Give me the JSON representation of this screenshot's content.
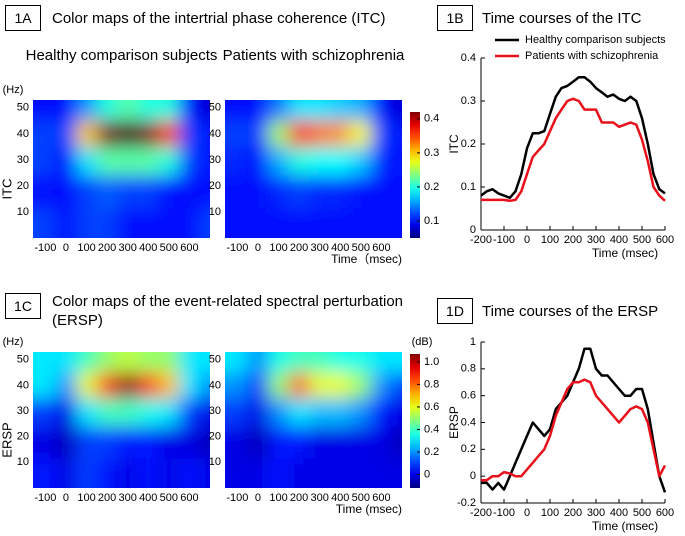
{
  "panels": [
    {
      "label": "1A",
      "title": "Color maps of the intertrial phase coherence (ITC)"
    },
    {
      "label": "1B",
      "title": "Time courses of the ITC"
    },
    {
      "label": "1C",
      "title": "Color maps of the event-related spectral perturbation (ERSP)"
    },
    {
      "label": "1D",
      "title": "Time courses of the ERSP"
    }
  ],
  "chart_data": [
    {
      "type": "heatmap",
      "title": "Healthy comparison subjects",
      "y_label": "ITC",
      "y_unit": "(Hz)",
      "x": [
        -100,
        0,
        100,
        200,
        300,
        400,
        500,
        600,
        700
      ],
      "y": [
        5,
        18,
        30,
        40,
        50
      ],
      "z": [
        [
          0.12,
          0.1,
          0.12,
          0.12,
          0.1,
          0.1,
          0.1,
          0.1,
          0.12
        ],
        [
          0.1,
          0.1,
          0.12,
          0.13,
          0.12,
          0.12,
          0.1,
          0.1,
          0.1
        ],
        [
          0.12,
          0.1,
          0.18,
          0.22,
          0.22,
          0.22,
          0.2,
          0.12,
          0.1
        ],
        [
          0.12,
          0.12,
          0.3,
          0.42,
          0.44,
          0.42,
          0.35,
          0.12,
          0.1
        ],
        [
          0.1,
          0.1,
          0.15,
          0.2,
          0.22,
          0.2,
          0.2,
          0.1,
          0.08
        ]
      ],
      "xlim": [
        -160,
        700
      ],
      "ylim": [
        0,
        53
      ],
      "zlim": [
        0.05,
        0.42
      ],
      "xticks": [
        -100,
        0,
        100,
        200,
        300,
        400,
        500,
        600
      ],
      "yticks": [
        10,
        20,
        30,
        40,
        50
      ]
    },
    {
      "type": "heatmap",
      "title": "Patients with schizophrenia",
      "x_label": "Time（msec)",
      "x": [
        -100,
        0,
        100,
        200,
        300,
        400,
        500,
        600,
        700
      ],
      "y": [
        5,
        18,
        30,
        40,
        50
      ],
      "z": [
        [
          0.1,
          0.1,
          0.1,
          0.1,
          0.1,
          0.1,
          0.1,
          0.1,
          0.1
        ],
        [
          0.1,
          0.1,
          0.11,
          0.12,
          0.11,
          0.11,
          0.1,
          0.1,
          0.1
        ],
        [
          0.11,
          0.1,
          0.16,
          0.2,
          0.19,
          0.19,
          0.17,
          0.11,
          0.1
        ],
        [
          0.12,
          0.12,
          0.25,
          0.36,
          0.33,
          0.32,
          0.28,
          0.12,
          0.1
        ],
        [
          0.1,
          0.1,
          0.14,
          0.18,
          0.18,
          0.17,
          0.16,
          0.1,
          0.08
        ]
      ],
      "xlim": [
        -160,
        700
      ],
      "ylim": [
        0,
        53
      ],
      "zlim": [
        0.05,
        0.42
      ],
      "xticks": [
        -100,
        0,
        100,
        200,
        300,
        400,
        500,
        600
      ],
      "yticks": [
        10,
        20,
        30,
        40,
        50
      ],
      "colorbar": true,
      "zticks": [
        0.1,
        0.2,
        0.3,
        0.4
      ]
    },
    {
      "type": "line",
      "y_label": "ITC",
      "x_label": "Time (msec)",
      "legend": "upper left",
      "x": [
        -200,
        -175,
        -150,
        -125,
        -100,
        -75,
        -50,
        -25,
        0,
        25,
        50,
        75,
        100,
        125,
        150,
        175,
        200,
        225,
        250,
        275,
        300,
        325,
        350,
        375,
        400,
        425,
        450,
        475,
        500,
        525,
        550,
        575,
        600
      ],
      "series": [
        {
          "name": "Healthy comparison subjects",
          "color": "#000000",
          "values": [
            0.08,
            0.09,
            0.095,
            0.085,
            0.08,
            0.075,
            0.09,
            0.13,
            0.19,
            0.225,
            0.225,
            0.23,
            0.27,
            0.31,
            0.33,
            0.335,
            0.345,
            0.355,
            0.355,
            0.345,
            0.33,
            0.32,
            0.31,
            0.315,
            0.305,
            0.3,
            0.31,
            0.3,
            0.26,
            0.2,
            0.13,
            0.095,
            0.085
          ]
        },
        {
          "name": "Patients with schizophrenia",
          "color": "#e8101a",
          "values": [
            0.07,
            0.07,
            0.07,
            0.07,
            0.07,
            0.068,
            0.07,
            0.09,
            0.13,
            0.17,
            0.185,
            0.2,
            0.23,
            0.26,
            0.28,
            0.3,
            0.305,
            0.3,
            0.28,
            0.28,
            0.28,
            0.25,
            0.25,
            0.25,
            0.24,
            0.245,
            0.25,
            0.245,
            0.21,
            0.16,
            0.1,
            0.08,
            0.068
          ]
        }
      ],
      "xlim": [
        -200,
        600
      ],
      "ylim": [
        0,
        0.4
      ],
      "xticks": [
        -200,
        -100,
        0,
        100,
        200,
        300,
        400,
        500,
        600
      ],
      "yticks": [
        0,
        0.1,
        0.2,
        0.3,
        0.4
      ]
    },
    {
      "type": "heatmap",
      "y_label": "ERSP",
      "y_unit": "(Hz)",
      "x": [
        -100,
        0,
        100,
        200,
        300,
        400,
        500,
        600,
        700
      ],
      "y": [
        5,
        18,
        30,
        40,
        50
      ],
      "z": [
        [
          0.05,
          0,
          0.1,
          0.05,
          0,
          0.05,
          0,
          0.05,
          0
        ],
        [
          0,
          -0.05,
          0.1,
          0.1,
          0.05,
          0.05,
          0,
          0,
          -0.05
        ],
        [
          0.1,
          0,
          0.3,
          0.4,
          0.4,
          0.35,
          0.3,
          0.1,
          0
        ],
        [
          0.3,
          0.2,
          0.6,
          0.85,
          1.05,
          0.85,
          0.7,
          0.3,
          0.2
        ],
        [
          0.3,
          0.3,
          0.4,
          0.5,
          0.55,
          0.5,
          0.5,
          0.3,
          0.3
        ]
      ],
      "xlim": [
        -160,
        700
      ],
      "ylim": [
        0,
        53
      ],
      "zlim": [
        -0.12,
        1.07
      ],
      "xticks": [
        -100,
        0,
        100,
        200,
        300,
        400,
        500,
        600
      ],
      "yticks": [
        10,
        20,
        30,
        40,
        50
      ]
    },
    {
      "type": "heatmap",
      "x_label": "Time (msec)",
      "x": [
        -100,
        0,
        100,
        200,
        300,
        400,
        500,
        600,
        700
      ],
      "y": [
        5,
        18,
        30,
        40,
        50
      ],
      "z": [
        [
          0,
          0,
          0.05,
          0,
          0,
          0,
          0,
          0,
          0
        ],
        [
          0,
          -0.05,
          0.05,
          0.05,
          0,
          0,
          0,
          0,
          -0.05
        ],
        [
          0.1,
          0,
          0.2,
          0.3,
          0.25,
          0.25,
          0.2,
          0.05,
          0
        ],
        [
          0.2,
          0.1,
          0.5,
          0.8,
          0.6,
          0.6,
          0.5,
          0.2,
          0.1
        ],
        [
          0.3,
          0.2,
          0.35,
          0.4,
          0.4,
          0.35,
          0.35,
          0.3,
          0.3
        ]
      ],
      "xlim": [
        -160,
        700
      ],
      "ylim": [
        0,
        53
      ],
      "zlim": [
        -0.12,
        1.07
      ],
      "xticks": [
        -100,
        0,
        100,
        200,
        300,
        400,
        500,
        600
      ],
      "yticks": [
        10,
        20,
        30,
        40,
        50
      ],
      "colorbar": true,
      "z_unit": "(dB)",
      "zticks": [
        0,
        0.2,
        0.4,
        0.6,
        0.8,
        {
          "value": 1,
          "label": "1.0"
        }
      ]
    },
    {
      "type": "line",
      "y_label": "ERSP",
      "x_label": "Time (msec)",
      "x": [
        -200,
        -175,
        -150,
        -125,
        -100,
        -75,
        -50,
        -25,
        0,
        25,
        50,
        75,
        100,
        125,
        150,
        175,
        200,
        225,
        250,
        275,
        300,
        325,
        350,
        375,
        400,
        425,
        450,
        475,
        500,
        525,
        550,
        575,
        600
      ],
      "series": [
        {
          "color": "#000000",
          "values": [
            -0.05,
            -0.05,
            -0.1,
            -0.05,
            -0.1,
            0,
            0.1,
            0.2,
            0.3,
            0.4,
            0.35,
            0.3,
            0.35,
            0.5,
            0.55,
            0.6,
            0.7,
            0.8,
            0.95,
            0.95,
            0.8,
            0.75,
            0.75,
            0.7,
            0.65,
            0.6,
            0.6,
            0.65,
            0.65,
            0.5,
            0.25,
            0,
            -0.12
          ]
        },
        {
          "color": "#e8101a",
          "values": [
            -0.03,
            -0.03,
            0,
            0,
            0.03,
            0.02,
            0,
            0,
            0.05,
            0.1,
            0.15,
            0.2,
            0.3,
            0.45,
            0.55,
            0.65,
            0.7,
            0.7,
            0.72,
            0.7,
            0.6,
            0.55,
            0.5,
            0.45,
            0.4,
            0.45,
            0.5,
            0.52,
            0.5,
            0.4,
            0.2,
            0,
            0.08
          ]
        }
      ],
      "xlim": [
        -200,
        600
      ],
      "ylim": [
        -0.2,
        1
      ],
      "xticks": [
        -200,
        -100,
        0,
        100,
        200,
        300,
        400,
        500,
        600
      ],
      "yticks": [
        -0.2,
        0,
        0.2,
        0.4,
        0.6,
        0.8,
        1
      ]
    }
  ]
}
